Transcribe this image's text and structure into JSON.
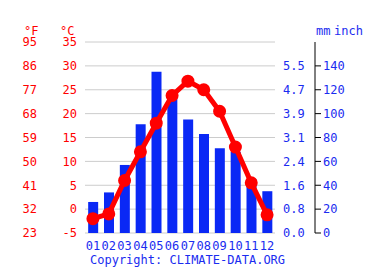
{
  "chart_data": {
    "type": "climate",
    "categories": [
      "01",
      "02",
      "03",
      "04",
      "05",
      "06",
      "07",
      "08",
      "09",
      "10",
      "11",
      "12"
    ],
    "series": [
      {
        "type": "bar",
        "color": "#0a28f5",
        "axis": "y2",
        "values": [
          26,
          34,
          57,
          91,
          135,
          114,
          95,
          83,
          71,
          68,
          45,
          35
        ]
      },
      {
        "type": "line",
        "color": "#ff0000",
        "marker": "circle",
        "values": [
          -2,
          -1,
          6,
          12,
          18,
          23.8,
          26.8,
          25,
          20.5,
          13,
          5.5,
          -1.2
        ]
      }
    ],
    "ylabel": "°C",
    "ylim": [
      -5,
      35
    ],
    "yticks": [
      -5,
      0,
      5,
      10,
      15,
      20,
      25,
      30,
      35
    ],
    "ylabel_f": "°F",
    "yticks_f": [
      {
        "value": -5,
        "label": "23"
      },
      {
        "value": 0,
        "label": "32"
      },
      {
        "value": 5,
        "label": "41"
      },
      {
        "value": 10,
        "label": "50"
      },
      {
        "value": 15,
        "label": "59"
      },
      {
        "value": 20,
        "label": "68"
      },
      {
        "value": 25,
        "label": "77"
      },
      {
        "value": 30,
        "label": "86"
      },
      {
        "value": 35,
        "label": "95"
      }
    ],
    "y2label": "mm",
    "y2lim": [
      0,
      160
    ],
    "y2ticks": [
      0,
      20,
      40,
      60,
      80,
      100,
      120,
      140
    ],
    "y2label_inch": "inch",
    "y2ticks_inch": [
      {
        "value": 0,
        "label": "0.0"
      },
      {
        "value": 20,
        "label": "0.8"
      },
      {
        "value": 40,
        "label": "1.6"
      },
      {
        "value": 60,
        "label": "2.4"
      },
      {
        "value": 80,
        "label": "3.1"
      },
      {
        "value": 100,
        "label": "3.9"
      },
      {
        "value": 120,
        "label": "4.7"
      },
      {
        "value": 140,
        "label": "5.5"
      }
    ],
    "grid": true,
    "source": "Copyright: CLIMATE-DATA.ORG"
  }
}
